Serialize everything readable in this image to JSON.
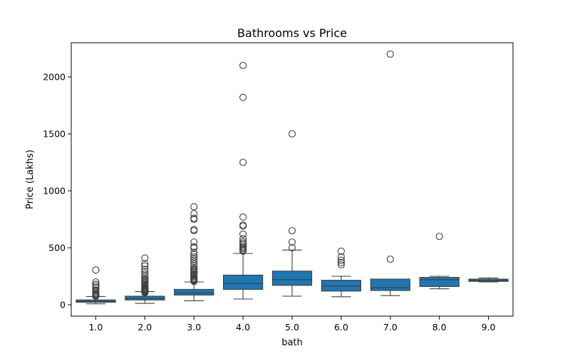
{
  "chart_data": {
    "type": "box",
    "title": "Bathrooms vs Price",
    "xlabel": "bath",
    "ylabel": "Price (Lakhs)",
    "ylim": [
      -100,
      2300
    ],
    "yticks": [
      0,
      500,
      1000,
      1500,
      2000
    ],
    "grid": false,
    "box_color": "#1f77b4",
    "categories": [
      "1.0",
      "2.0",
      "3.0",
      "4.0",
      "5.0",
      "6.0",
      "7.0",
      "8.0",
      "9.0"
    ],
    "boxes": [
      {
        "category": "1.0",
        "whisker_low": 8,
        "q1": 22,
        "median": 30,
        "q3": 42,
        "whisker_high": 72,
        "outliers": [
          75,
          80,
          85,
          90,
          100,
          110,
          120,
          130,
          150,
          165,
          180,
          200,
          305
        ]
      },
      {
        "category": "2.0",
        "whisker_low": 12,
        "q1": 42,
        "median": 55,
        "q3": 75,
        "whisker_high": 115,
        "outliers": [
          105,
          110,
          115,
          120,
          125,
          130,
          135,
          140,
          145,
          150,
          160,
          170,
          180,
          190,
          200,
          210,
          220,
          230,
          250,
          270,
          290,
          310,
          340,
          360,
          410
        ]
      },
      {
        "category": "3.0",
        "whisker_low": 35,
        "q1": 85,
        "median": 105,
        "q3": 135,
        "whisker_high": 200,
        "outliers": [
          205,
          210,
          215,
          220,
          230,
          240,
          250,
          260,
          270,
          280,
          290,
          300,
          310,
          320,
          340,
          360,
          380,
          400,
          420,
          440,
          460,
          500,
          510,
          550,
          650,
          660,
          750,
          760,
          800,
          860
        ]
      },
      {
        "category": "4.0",
        "whisker_low": 50,
        "q1": 135,
        "median": 185,
        "q3": 260,
        "whisker_high": 450,
        "outliers": [
          470,
          480,
          490,
          500,
          510,
          525,
          540,
          555,
          580,
          620,
          690,
          700,
          770,
          1250,
          1820,
          2100
        ]
      },
      {
        "category": "5.0",
        "whisker_low": 75,
        "q1": 170,
        "median": 220,
        "q3": 295,
        "whisker_high": 480,
        "outliers": [
          500,
          550,
          650,
          1500
        ]
      },
      {
        "category": "6.0",
        "whisker_low": 70,
        "q1": 120,
        "median": 165,
        "q3": 215,
        "whisker_high": 250,
        "outliers": [
          350,
          370,
          390,
          420,
          470
        ]
      },
      {
        "category": "7.0",
        "whisker_low": 80,
        "q1": 125,
        "median": 150,
        "q3": 225,
        "whisker_high": 225,
        "outliers": [
          400,
          2200
        ]
      },
      {
        "category": "8.0",
        "whisker_low": 140,
        "q1": 160,
        "median": 220,
        "q3": 240,
        "whisker_high": 250,
        "outliers": [
          600
        ]
      },
      {
        "category": "9.0",
        "whisker_low": 200,
        "q1": 205,
        "median": 215,
        "q3": 225,
        "whisker_high": 235,
        "outliers": []
      }
    ]
  }
}
